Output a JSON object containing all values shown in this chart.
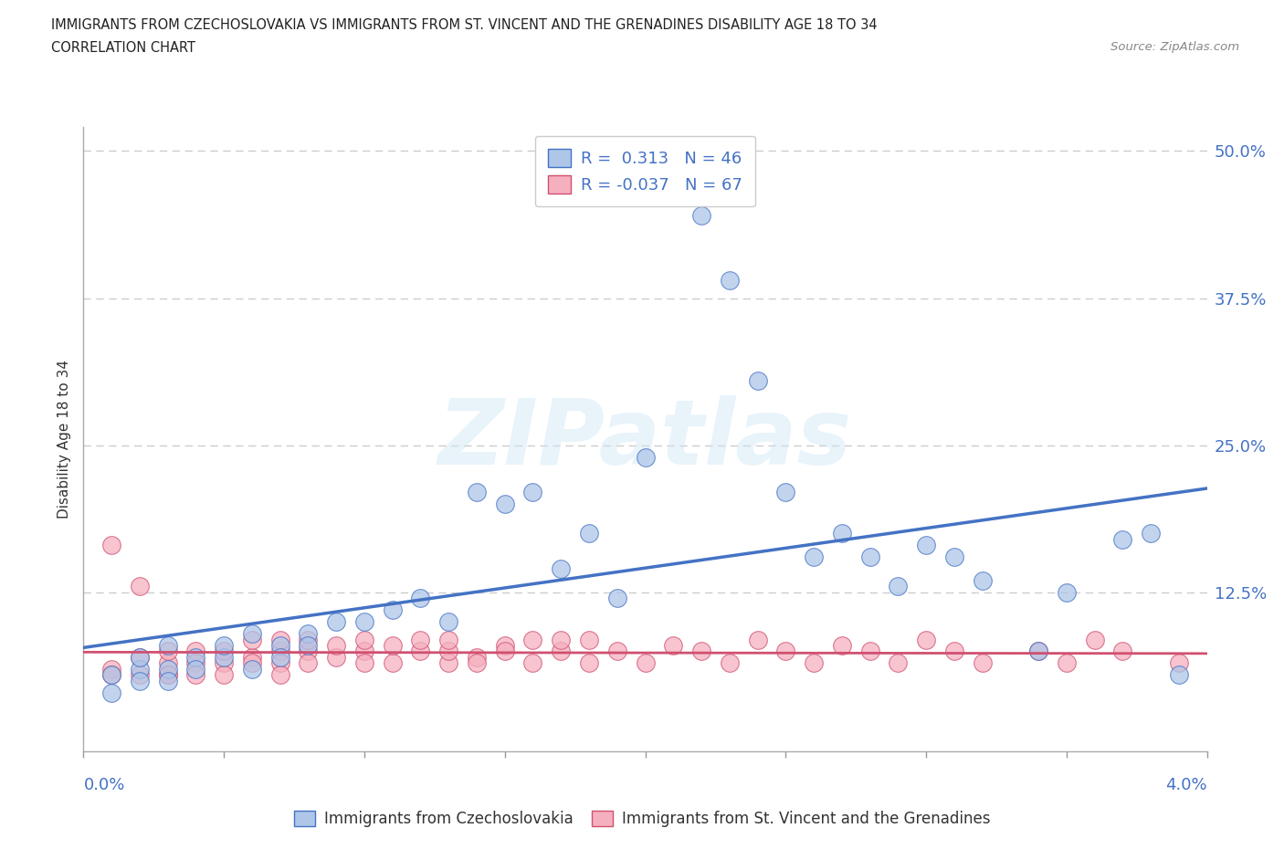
{
  "title_line1": "IMMIGRANTS FROM CZECHOSLOVAKIA VS IMMIGRANTS FROM ST. VINCENT AND THE GRENADINES DISABILITY AGE 18 TO 34",
  "title_line2": "CORRELATION CHART",
  "source_text": "Source: ZipAtlas.com",
  "ylabel": "Disability Age 18 to 34",
  "legend_label1": "Immigrants from Czechoslovakia",
  "legend_label2": "Immigrants from St. Vincent and the Grenadines",
  "color_blue": "#aec6e8",
  "color_pink": "#f5b0c0",
  "line_color_blue": "#4472c4",
  "line_color_pink": "#d05070",
  "background_color": "#ffffff",
  "xlim": [
    0.0,
    0.04
  ],
  "ylim": [
    -0.01,
    0.52
  ],
  "yticks": [
    0.0,
    0.125,
    0.25,
    0.375,
    0.5
  ],
  "ytick_labels": [
    "",
    "12.5%",
    "25.0%",
    "37.5%",
    "50.0%"
  ],
  "grid_color": "#cccccc",
  "blue_scatter_x": [
    0.001,
    0.001,
    0.002,
    0.002,
    0.002,
    0.003,
    0.003,
    0.003,
    0.004,
    0.004,
    0.005,
    0.005,
    0.006,
    0.006,
    0.007,
    0.007,
    0.008,
    0.008,
    0.009,
    0.01,
    0.011,
    0.012,
    0.013,
    0.014,
    0.015,
    0.016,
    0.017,
    0.018,
    0.019,
    0.02,
    0.022,
    0.023,
    0.024,
    0.025,
    0.026,
    0.027,
    0.028,
    0.029,
    0.03,
    0.031,
    0.032,
    0.034,
    0.035,
    0.037,
    0.038,
    0.039
  ],
  "blue_scatter_y": [
    0.055,
    0.04,
    0.06,
    0.05,
    0.07,
    0.06,
    0.08,
    0.05,
    0.07,
    0.06,
    0.07,
    0.08,
    0.06,
    0.09,
    0.08,
    0.07,
    0.09,
    0.08,
    0.1,
    0.1,
    0.11,
    0.12,
    0.1,
    0.21,
    0.2,
    0.21,
    0.145,
    0.175,
    0.12,
    0.24,
    0.445,
    0.39,
    0.305,
    0.21,
    0.155,
    0.175,
    0.155,
    0.13,
    0.165,
    0.155,
    0.135,
    0.075,
    0.125,
    0.17,
    0.175,
    0.055
  ],
  "pink_scatter_x": [
    0.001,
    0.001,
    0.001,
    0.002,
    0.002,
    0.002,
    0.003,
    0.003,
    0.003,
    0.003,
    0.004,
    0.004,
    0.004,
    0.005,
    0.005,
    0.005,
    0.006,
    0.006,
    0.006,
    0.007,
    0.007,
    0.007,
    0.007,
    0.008,
    0.008,
    0.008,
    0.009,
    0.009,
    0.01,
    0.01,
    0.01,
    0.011,
    0.011,
    0.012,
    0.012,
    0.013,
    0.013,
    0.013,
    0.014,
    0.014,
    0.015,
    0.015,
    0.016,
    0.016,
    0.017,
    0.017,
    0.018,
    0.018,
    0.019,
    0.02,
    0.021,
    0.022,
    0.023,
    0.024,
    0.025,
    0.026,
    0.027,
    0.028,
    0.029,
    0.03,
    0.031,
    0.032,
    0.034,
    0.035,
    0.036,
    0.037,
    0.039
  ],
  "pink_scatter_y": [
    0.165,
    0.06,
    0.055,
    0.13,
    0.07,
    0.055,
    0.065,
    0.055,
    0.075,
    0.055,
    0.075,
    0.065,
    0.055,
    0.065,
    0.075,
    0.055,
    0.07,
    0.065,
    0.085,
    0.075,
    0.065,
    0.085,
    0.055,
    0.075,
    0.065,
    0.085,
    0.07,
    0.08,
    0.075,
    0.065,
    0.085,
    0.065,
    0.08,
    0.075,
    0.085,
    0.065,
    0.075,
    0.085,
    0.07,
    0.065,
    0.08,
    0.075,
    0.085,
    0.065,
    0.075,
    0.085,
    0.065,
    0.085,
    0.075,
    0.065,
    0.08,
    0.075,
    0.065,
    0.085,
    0.075,
    0.065,
    0.08,
    0.075,
    0.065,
    0.085,
    0.075,
    0.065,
    0.075,
    0.065,
    0.085,
    0.075,
    0.065
  ]
}
